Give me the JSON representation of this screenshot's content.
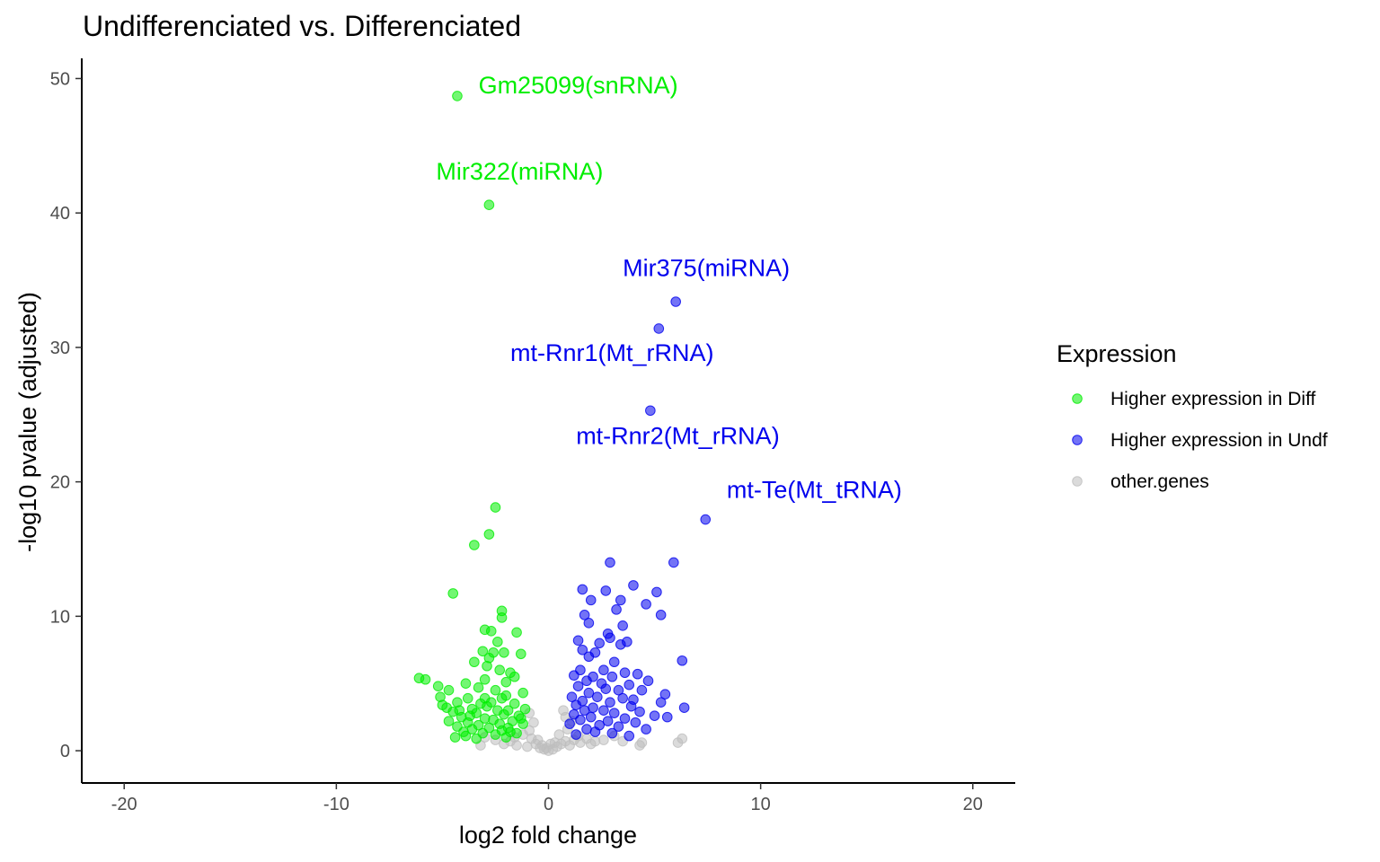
{
  "chart_data": {
    "type": "scatter",
    "title": "Undifferenciated vs. Differenciated",
    "xlabel": "log2 fold change",
    "ylabel": "-log10 pvalue (adjusted)",
    "xlim": [
      -22,
      22
    ],
    "ylim": [
      -2.4,
      51.5
    ],
    "x_ticks": [
      -20,
      -10,
      0,
      10,
      20
    ],
    "x_tick_labels": [
      "-20",
      "-10",
      "0",
      "10",
      "20"
    ],
    "y_ticks": [
      0,
      10,
      20,
      30,
      40,
      50
    ],
    "y_tick_labels": [
      "0",
      "10",
      "20",
      "30",
      "40",
      "50"
    ],
    "grid": false,
    "legend": {
      "title": "Expression",
      "position": "right"
    },
    "series": [
      {
        "name": "Higher expression in Diff",
        "color": "#00ee00",
        "points": [
          [
            -4.3,
            48.7
          ],
          [
            -2.8,
            40.6
          ],
          [
            -2.5,
            18.1
          ],
          [
            -2.8,
            16.1
          ],
          [
            -3.5,
            15.3
          ],
          [
            -4.5,
            11.7
          ],
          [
            -2.2,
            10.4
          ],
          [
            -2.2,
            9.9
          ],
          [
            -3.0,
            9.0
          ],
          [
            -2.7,
            8.9
          ],
          [
            -1.5,
            8.8
          ],
          [
            -2.4,
            8.1
          ],
          [
            -3.1,
            7.4
          ],
          [
            -2.6,
            7.3
          ],
          [
            -2.1,
            7.3
          ],
          [
            -1.3,
            7.2
          ],
          [
            -2.8,
            6.9
          ],
          [
            -3.5,
            6.6
          ],
          [
            -2.9,
            6.3
          ],
          [
            -2.3,
            6.0
          ],
          [
            -1.8,
            5.8
          ],
          [
            -1.6,
            5.5
          ],
          [
            -6.1,
            5.4
          ],
          [
            -5.8,
            5.3
          ],
          [
            -3.0,
            5.3
          ],
          [
            -2.0,
            5.1
          ],
          [
            -3.9,
            5.0
          ],
          [
            -5.2,
            4.8
          ],
          [
            -3.3,
            4.7
          ],
          [
            -4.7,
            4.5
          ],
          [
            -2.5,
            4.5
          ],
          [
            -1.2,
            4.3
          ],
          [
            -5.1,
            4.0
          ],
          [
            -3.8,
            3.9
          ],
          [
            -2.2,
            3.9
          ],
          [
            -4.3,
            3.6
          ],
          [
            -3.2,
            3.5
          ],
          [
            -1.6,
            3.5
          ],
          [
            -5.0,
            3.4
          ],
          [
            -2.9,
            3.3
          ],
          [
            -4.8,
            3.2
          ],
          [
            -3.6,
            3.1
          ],
          [
            -2.4,
            3.0
          ],
          [
            -1.9,
            3.0
          ],
          [
            -4.5,
            2.9
          ],
          [
            -3.4,
            2.8
          ],
          [
            -2.1,
            2.7
          ],
          [
            -1.4,
            2.6
          ],
          [
            -4.1,
            2.5
          ],
          [
            -3.0,
            2.4
          ],
          [
            -2.6,
            2.3
          ],
          [
            -1.7,
            2.2
          ],
          [
            -4.7,
            2.2
          ],
          [
            -3.8,
            2.1
          ],
          [
            -2.3,
            2.0
          ],
          [
            -1.2,
            2.0
          ],
          [
            -3.3,
            1.9
          ],
          [
            -4.3,
            1.8
          ],
          [
            -2.8,
            1.7
          ],
          [
            -1.9,
            1.7
          ],
          [
            -3.6,
            1.6
          ],
          [
            -2.2,
            1.5
          ],
          [
            -4.0,
            1.4
          ],
          [
            -3.1,
            1.3
          ],
          [
            -1.5,
            1.3
          ],
          [
            -2.5,
            1.2
          ],
          [
            -3.9,
            1.1
          ],
          [
            -2.0,
            1.0
          ],
          [
            -3.4,
            0.9
          ],
          [
            -4.4,
            1.0
          ],
          [
            -2.7,
            3.6
          ],
          [
            -1.1,
            3.1
          ],
          [
            -3.7,
            2.6
          ],
          [
            -2.0,
            4.1
          ],
          [
            -1.3,
            2.4
          ],
          [
            -3.0,
            3.9
          ],
          [
            -4.2,
            3.0
          ],
          [
            -1.8,
            1.4
          ]
        ]
      },
      {
        "name": "Higher expression in Undf",
        "color": "#0000ee",
        "points": [
          [
            6.0,
            33.4
          ],
          [
            5.2,
            31.4
          ],
          [
            4.8,
            25.3
          ],
          [
            7.4,
            17.2
          ],
          [
            2.9,
            14.0
          ],
          [
            5.9,
            14.0
          ],
          [
            4.0,
            12.3
          ],
          [
            1.6,
            12.0
          ],
          [
            2.7,
            11.9
          ],
          [
            5.1,
            11.8
          ],
          [
            2.0,
            11.2
          ],
          [
            3.4,
            11.2
          ],
          [
            4.6,
            10.9
          ],
          [
            3.2,
            10.5
          ],
          [
            5.3,
            10.1
          ],
          [
            1.7,
            10.1
          ],
          [
            1.9,
            9.5
          ],
          [
            3.5,
            9.3
          ],
          [
            2.8,
            8.7
          ],
          [
            2.9,
            8.4
          ],
          [
            1.4,
            8.2
          ],
          [
            2.4,
            8.0
          ],
          [
            3.7,
            8.1
          ],
          [
            3.4,
            7.9
          ],
          [
            1.6,
            7.5
          ],
          [
            2.2,
            7.3
          ],
          [
            1.9,
            7.0
          ],
          [
            6.3,
            6.7
          ],
          [
            3.1,
            6.6
          ],
          [
            2.6,
            6.0
          ],
          [
            1.5,
            6.0
          ],
          [
            3.6,
            5.8
          ],
          [
            4.2,
            5.7
          ],
          [
            1.2,
            5.6
          ],
          [
            2.1,
            5.5
          ],
          [
            3.0,
            5.5
          ],
          [
            4.7,
            5.2
          ],
          [
            1.8,
            5.2
          ],
          [
            2.5,
            5.0
          ],
          [
            3.8,
            4.9
          ],
          [
            1.4,
            4.8
          ],
          [
            2.7,
            4.6
          ],
          [
            3.3,
            4.5
          ],
          [
            4.4,
            4.5
          ],
          [
            1.9,
            4.3
          ],
          [
            5.5,
            4.2
          ],
          [
            1.1,
            4.0
          ],
          [
            2.3,
            4.0
          ],
          [
            3.5,
            3.9
          ],
          [
            4.0,
            3.8
          ],
          [
            1.6,
            3.7
          ],
          [
            2.9,
            3.6
          ],
          [
            5.3,
            3.6
          ],
          [
            1.3,
            3.4
          ],
          [
            3.9,
            3.3
          ],
          [
            2.1,
            3.2
          ],
          [
            6.4,
            3.2
          ],
          [
            1.7,
            3.0
          ],
          [
            2.6,
            3.0
          ],
          [
            4.3,
            2.9
          ],
          [
            3.1,
            2.8
          ],
          [
            1.2,
            2.7
          ],
          [
            5.0,
            2.6
          ],
          [
            5.6,
            2.5
          ],
          [
            2.0,
            2.5
          ],
          [
            3.6,
            2.4
          ],
          [
            1.5,
            2.3
          ],
          [
            2.8,
            2.2
          ],
          [
            4.1,
            2.1
          ],
          [
            1.0,
            2.0
          ],
          [
            2.4,
            1.9
          ],
          [
            3.3,
            1.8
          ],
          [
            1.8,
            1.6
          ],
          [
            4.6,
            1.6
          ],
          [
            2.2,
            1.4
          ],
          [
            3.0,
            1.3
          ],
          [
            1.3,
            1.2
          ],
          [
            3.8,
            1.1
          ]
        ]
      },
      {
        "name": "other.genes",
        "color": "#bebebe",
        "points": [
          [
            6.1,
            0.6
          ],
          [
            6.3,
            0.9
          ],
          [
            4.4,
            0.6
          ],
          [
            4.3,
            0.4
          ],
          [
            3.1,
            1.1
          ],
          [
            -3.2,
            0.4
          ],
          [
            -2.1,
            0.5
          ],
          [
            -1.5,
            0.4
          ],
          [
            -1.0,
            0.3
          ],
          [
            -0.8,
            0.9
          ],
          [
            -0.6,
            0.5
          ],
          [
            -0.4,
            0.2
          ],
          [
            -0.2,
            0.1
          ],
          [
            0.0,
            0.0
          ],
          [
            0.2,
            0.1
          ],
          [
            0.4,
            0.3
          ],
          [
            0.6,
            0.5
          ],
          [
            0.8,
            0.7
          ],
          [
            1.0,
            0.4
          ],
          [
            1.2,
            0.8
          ],
          [
            1.5,
            0.6
          ],
          [
            1.8,
            0.9
          ],
          [
            2.2,
            0.7
          ],
          [
            2.6,
            0.8
          ],
          [
            3.5,
            0.7
          ],
          [
            -1.2,
            1.2
          ],
          [
            -0.9,
            1.5
          ],
          [
            -0.5,
            0.8
          ],
          [
            0.5,
            1.2
          ],
          [
            0.9,
            1.6
          ],
          [
            1.1,
            2.2
          ],
          [
            0.7,
            3.0
          ],
          [
            0.8,
            2.5
          ],
          [
            -0.7,
            2.1
          ],
          [
            -0.9,
            2.8
          ],
          [
            -2.5,
            0.8
          ],
          [
            -3.0,
            1.0
          ],
          [
            -1.8,
            0.7
          ],
          [
            -0.3,
            0.4
          ],
          [
            0.3,
            0.6
          ],
          [
            1.4,
            1.1
          ],
          [
            2.0,
            0.5
          ],
          [
            -1.6,
            1.0
          ],
          [
            -0.1,
            0.2
          ],
          [
            0.1,
            0.5
          ]
        ]
      }
    ],
    "annotations": [
      {
        "text": "Gm25099(snRNA)",
        "x": -3.3,
        "y": 49.5,
        "color": "#00ee00"
      },
      {
        "text": "Mir322(miRNA)",
        "x": -5.3,
        "y": 43.1,
        "color": "#00ee00"
      },
      {
        "text": "Mir375(miRNA)",
        "x": 3.5,
        "y": 35.9,
        "color": "#0000ee"
      },
      {
        "text": "mt-Rnr1(Mt_rRNA)",
        "x": -1.8,
        "y": 29.6,
        "color": "#0000ee"
      },
      {
        "text": "mt-Rnr2(Mt_rRNA)",
        "x": 1.3,
        "y": 23.4,
        "color": "#0000ee"
      },
      {
        "text": "mt-Te(Mt_tRNA)",
        "x": 8.4,
        "y": 19.4,
        "color": "#0000ee"
      }
    ]
  }
}
